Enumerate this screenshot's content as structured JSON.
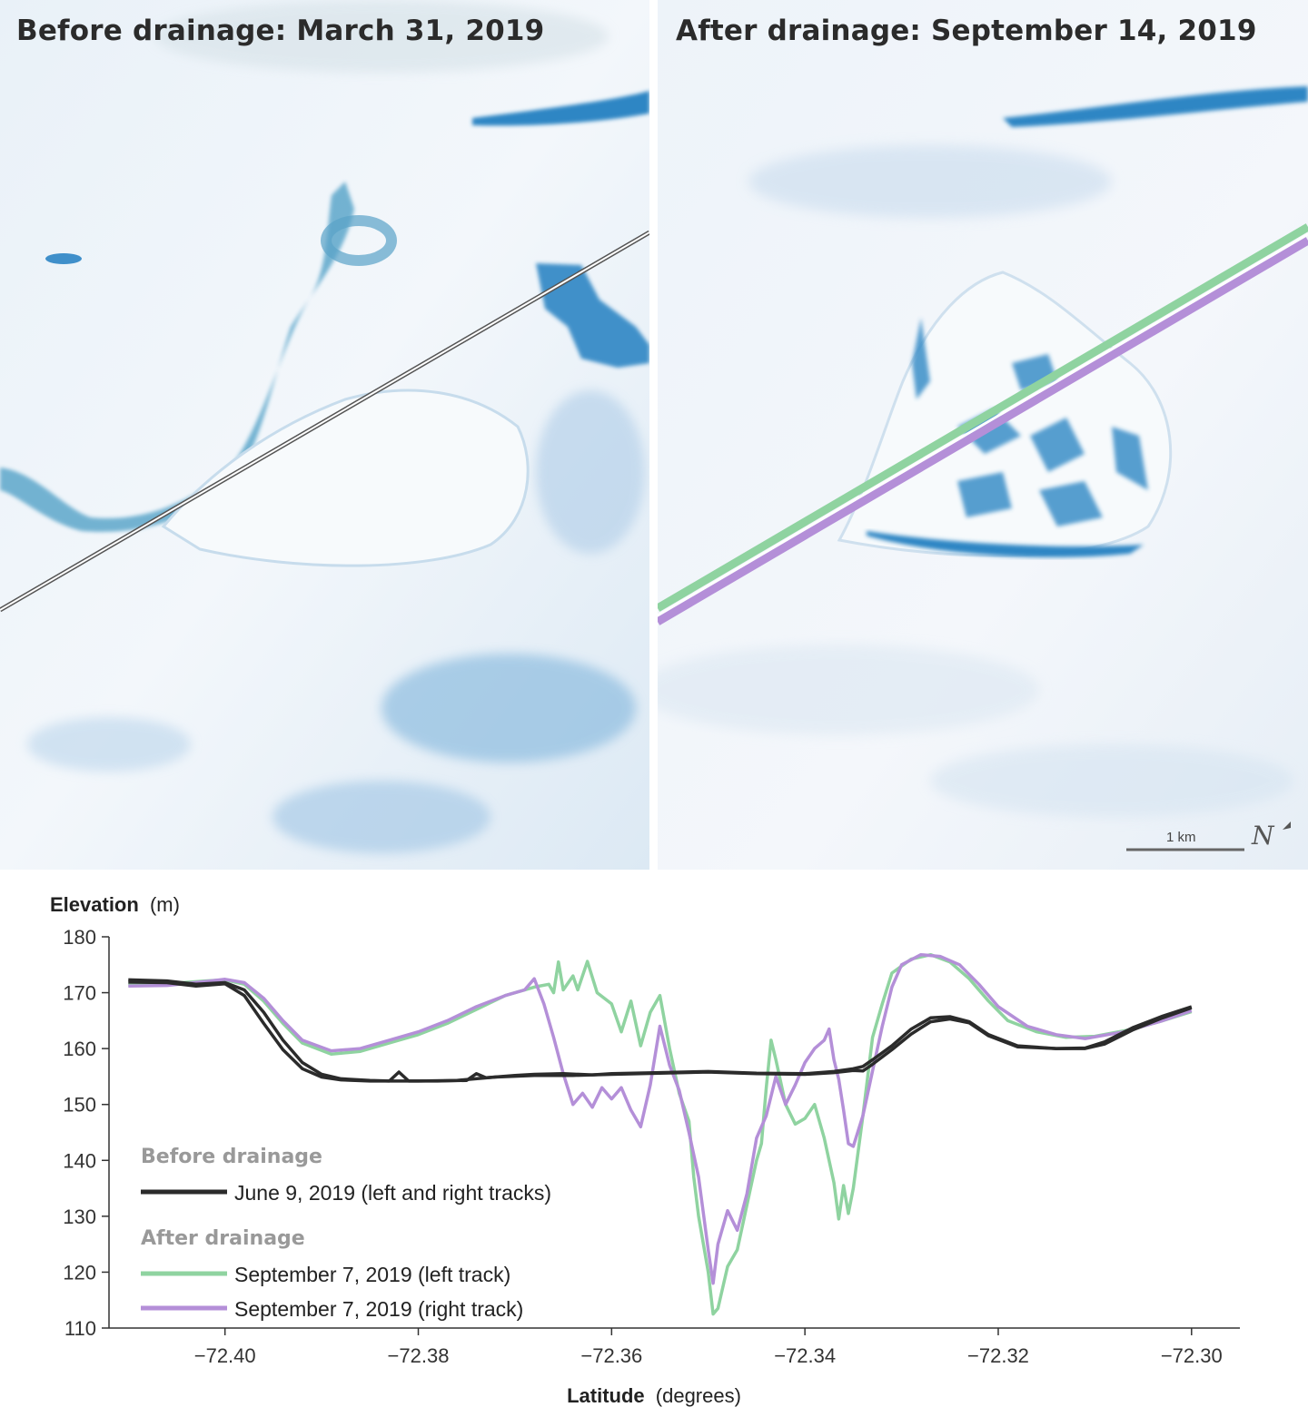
{
  "panels": {
    "left_title": "Before drainage: March 31, 2019",
    "right_title": "After drainage: September 14, 2019",
    "scale_label": "1 km",
    "north_symbol": "N"
  },
  "colors": {
    "before": "#2b2b2b",
    "after_left": "#8fd3a0",
    "after_right": "#b48fd8",
    "ice": "#eef4fa",
    "meltwater": "#2f86c4"
  },
  "chart_data": {
    "type": "line",
    "ylabel": "Elevation",
    "yunit": "(m)",
    "xlabel": "Latitude",
    "xunit": "(degrees)",
    "xlim": [
      -72.412,
      -72.295
    ],
    "ylim": [
      110,
      180
    ],
    "xticks": [
      "−72.40",
      "−72.38",
      "−72.36",
      "−72.34",
      "−72.32",
      "−72.30"
    ],
    "xtick_values": [
      -72.4,
      -72.38,
      -72.36,
      -72.34,
      -72.32,
      -72.3
    ],
    "yticks": [
      "180",
      "170",
      "160",
      "150",
      "140",
      "130",
      "120",
      "110"
    ],
    "ytick_values": [
      180,
      170,
      160,
      150,
      140,
      130,
      120,
      110
    ],
    "legend": {
      "before_heading": "Before drainage",
      "after_heading": "After drainage"
    },
    "series": [
      {
        "name": "June 9, 2019 (left and right tracks)",
        "group": "before",
        "color": "#2b2b2b",
        "points": [
          [
            -72.41,
            172.3
          ],
          [
            -72.406,
            172.1
          ],
          [
            -72.403,
            171.5
          ],
          [
            -72.4,
            171.8
          ],
          [
            -72.398,
            170.5
          ],
          [
            -72.396,
            166.5
          ],
          [
            -72.394,
            161.5
          ],
          [
            -72.392,
            157.5
          ],
          [
            -72.39,
            155.4
          ],
          [
            -72.388,
            154.6
          ],
          [
            -72.385,
            154.3
          ],
          [
            -72.383,
            154.2
          ],
          [
            -72.382,
            155.8
          ],
          [
            -72.381,
            154.2
          ],
          [
            -72.378,
            154.2
          ],
          [
            -72.375,
            154.3
          ],
          [
            -72.374,
            155.5
          ],
          [
            -72.373,
            154.8
          ],
          [
            -72.37,
            155.2
          ],
          [
            -72.368,
            155.4
          ],
          [
            -72.365,
            155.5
          ],
          [
            -72.362,
            155.3
          ],
          [
            -72.36,
            155.5
          ],
          [
            -72.355,
            155.7
          ],
          [
            -72.35,
            155.9
          ],
          [
            -72.345,
            155.6
          ],
          [
            -72.34,
            155.5
          ],
          [
            -72.337,
            155.9
          ],
          [
            -72.335,
            156.4
          ],
          [
            -72.334,
            156.8
          ],
          [
            -72.333,
            158.0
          ],
          [
            -72.331,
            160.5
          ],
          [
            -72.329,
            163.5
          ],
          [
            -72.327,
            165.5
          ],
          [
            -72.325,
            165.7
          ],
          [
            -72.323,
            164.8
          ],
          [
            -72.321,
            162.5
          ],
          [
            -72.318,
            160.5
          ],
          [
            -72.314,
            160.0
          ],
          [
            -72.311,
            160.1
          ],
          [
            -72.309,
            161.2
          ],
          [
            -72.306,
            163.8
          ],
          [
            -72.303,
            165.8
          ],
          [
            -72.3,
            167.5
          ]
        ],
        "points_b": [
          [
            -72.41,
            171.9
          ],
          [
            -72.406,
            171.8
          ],
          [
            -72.403,
            171.2
          ],
          [
            -72.4,
            171.6
          ],
          [
            -72.398,
            169.5
          ],
          [
            -72.396,
            164.5
          ],
          [
            -72.394,
            159.8
          ],
          [
            -72.392,
            156.4
          ],
          [
            -72.39,
            154.9
          ],
          [
            -72.388,
            154.4
          ],
          [
            -72.385,
            154.2
          ],
          [
            -72.38,
            154.2
          ],
          [
            -72.376,
            154.3
          ],
          [
            -72.372,
            154.9
          ],
          [
            -72.368,
            155.2
          ],
          [
            -72.364,
            155.2
          ],
          [
            -72.36,
            155.4
          ],
          [
            -72.355,
            155.6
          ],
          [
            -72.35,
            155.8
          ],
          [
            -72.345,
            155.5
          ],
          [
            -72.34,
            155.4
          ],
          [
            -72.337,
            155.7
          ],
          [
            -72.335,
            156.1
          ],
          [
            -72.334,
            156.0
          ],
          [
            -72.333,
            157.2
          ],
          [
            -72.331,
            159.8
          ],
          [
            -72.329,
            162.6
          ],
          [
            -72.327,
            164.8
          ],
          [
            -72.325,
            165.3
          ],
          [
            -72.323,
            164.6
          ],
          [
            -72.321,
            162.3
          ],
          [
            -72.318,
            160.3
          ],
          [
            -72.314,
            160.0
          ],
          [
            -72.311,
            160.0
          ],
          [
            -72.309,
            160.8
          ],
          [
            -72.306,
            163.4
          ],
          [
            -72.303,
            165.5
          ],
          [
            -72.3,
            167.3
          ]
        ]
      },
      {
        "name": "September 7, 2019 (left track)",
        "group": "after",
        "color": "#8fd3a0",
        "points": [
          [
            -72.41,
            171.4
          ],
          [
            -72.406,
            171.6
          ],
          [
            -72.402,
            172.1
          ],
          [
            -72.4,
            172.3
          ],
          [
            -72.398,
            171.5
          ],
          [
            -72.396,
            168.5
          ],
          [
            -72.394,
            164.5
          ],
          [
            -72.392,
            161.0
          ],
          [
            -72.389,
            159.0
          ],
          [
            -72.386,
            159.5
          ],
          [
            -72.383,
            161.0
          ],
          [
            -72.38,
            162.5
          ],
          [
            -72.377,
            164.5
          ],
          [
            -72.374,
            167.0
          ],
          [
            -72.371,
            169.5
          ],
          [
            -72.368,
            171.0
          ],
          [
            -72.3665,
            171.5
          ],
          [
            -72.366,
            170.0
          ],
          [
            -72.3655,
            175.5
          ],
          [
            -72.365,
            170.5
          ],
          [
            -72.364,
            173.0
          ],
          [
            -72.3635,
            170.5
          ],
          [
            -72.3625,
            175.6
          ],
          [
            -72.3615,
            170.0
          ],
          [
            -72.36,
            168.0
          ],
          [
            -72.359,
            163.0
          ],
          [
            -72.358,
            168.5
          ],
          [
            -72.357,
            160.5
          ],
          [
            -72.356,
            166.5
          ],
          [
            -72.355,
            169.5
          ],
          [
            -72.354,
            160.0
          ],
          [
            -72.353,
            152.0
          ],
          [
            -72.352,
            147.0
          ],
          [
            -72.3515,
            137.0
          ],
          [
            -72.351,
            130.0
          ],
          [
            -72.35,
            120.0
          ],
          [
            -72.3495,
            112.5
          ],
          [
            -72.349,
            113.5
          ],
          [
            -72.348,
            121.0
          ],
          [
            -72.347,
            124.0
          ],
          [
            -72.346,
            132.0
          ],
          [
            -72.345,
            140.0
          ],
          [
            -72.3445,
            143.0
          ],
          [
            -72.344,
            153.0
          ],
          [
            -72.3435,
            161.5
          ],
          [
            -72.343,
            158.0
          ],
          [
            -72.342,
            150.0
          ],
          [
            -72.341,
            146.5
          ],
          [
            -72.34,
            147.5
          ],
          [
            -72.339,
            150.0
          ],
          [
            -72.338,
            144.0
          ],
          [
            -72.337,
            136.0
          ],
          [
            -72.3365,
            129.5
          ],
          [
            -72.336,
            135.5
          ],
          [
            -72.3355,
            130.5
          ],
          [
            -72.335,
            135.0
          ],
          [
            -72.334,
            148.0
          ],
          [
            -72.333,
            162.0
          ],
          [
            -72.332,
            168.0
          ],
          [
            -72.331,
            173.5
          ],
          [
            -72.329,
            176.0
          ],
          [
            -72.327,
            176.8
          ],
          [
            -72.325,
            175.5
          ],
          [
            -72.323,
            172.5
          ],
          [
            -72.321,
            168.5
          ],
          [
            -72.319,
            165.0
          ],
          [
            -72.316,
            163.0
          ],
          [
            -72.313,
            162.0
          ],
          [
            -72.31,
            162.2
          ],
          [
            -72.306,
            163.5
          ],
          [
            -72.303,
            165.0
          ],
          [
            -72.3,
            166.6
          ]
        ]
      },
      {
        "name": "September 7, 2019 (right track)",
        "group": "after",
        "color": "#b48fd8",
        "points": [
          [
            -72.41,
            171.2
          ],
          [
            -72.406,
            171.3
          ],
          [
            -72.402,
            172.0
          ],
          [
            -72.4,
            172.4
          ],
          [
            -72.398,
            171.8
          ],
          [
            -72.396,
            169.0
          ],
          [
            -72.394,
            165.0
          ],
          [
            -72.392,
            161.5
          ],
          [
            -72.389,
            159.6
          ],
          [
            -72.386,
            160.0
          ],
          [
            -72.383,
            161.5
          ],
          [
            -72.38,
            163.0
          ],
          [
            -72.377,
            165.0
          ],
          [
            -72.374,
            167.5
          ],
          [
            -72.371,
            169.5
          ],
          [
            -72.369,
            170.5
          ],
          [
            -72.368,
            172.5
          ],
          [
            -72.367,
            168.0
          ],
          [
            -72.366,
            162.0
          ],
          [
            -72.365,
            155.5
          ],
          [
            -72.364,
            150.0
          ],
          [
            -72.363,
            152.0
          ],
          [
            -72.362,
            149.5
          ],
          [
            -72.361,
            153.0
          ],
          [
            -72.36,
            151.0
          ],
          [
            -72.359,
            153.0
          ],
          [
            -72.358,
            149.0
          ],
          [
            -72.357,
            146.0
          ],
          [
            -72.356,
            153.5
          ],
          [
            -72.355,
            164.0
          ],
          [
            -72.354,
            157.0
          ],
          [
            -72.353,
            152.5
          ],
          [
            -72.352,
            145.0
          ],
          [
            -72.351,
            137.0
          ],
          [
            -72.35,
            124.0
          ],
          [
            -72.3495,
            118.0
          ],
          [
            -72.349,
            125.0
          ],
          [
            -72.348,
            131.0
          ],
          [
            -72.347,
            127.5
          ],
          [
            -72.346,
            134.0
          ],
          [
            -72.345,
            144.0
          ],
          [
            -72.344,
            148.0
          ],
          [
            -72.343,
            155.0
          ],
          [
            -72.342,
            150.0
          ],
          [
            -72.341,
            153.5
          ],
          [
            -72.34,
            157.5
          ],
          [
            -72.339,
            160.0
          ],
          [
            -72.338,
            161.5
          ],
          [
            -72.3375,
            163.5
          ],
          [
            -72.337,
            158.0
          ],
          [
            -72.3365,
            154.5
          ],
          [
            -72.336,
            149.0
          ],
          [
            -72.3355,
            143.0
          ],
          [
            -72.335,
            142.5
          ],
          [
            -72.334,
            148.0
          ],
          [
            -72.333,
            156.0
          ],
          [
            -72.332,
            164.0
          ],
          [
            -72.331,
            171.0
          ],
          [
            -72.33,
            175.0
          ],
          [
            -72.328,
            176.8
          ],
          [
            -72.326,
            176.5
          ],
          [
            -72.324,
            175.0
          ],
          [
            -72.322,
            171.5
          ],
          [
            -72.32,
            167.5
          ],
          [
            -72.317,
            164.0
          ],
          [
            -72.314,
            162.5
          ],
          [
            -72.311,
            161.8
          ],
          [
            -72.307,
            163.0
          ],
          [
            -72.303,
            165.0
          ],
          [
            -72.3,
            166.8
          ]
        ]
      }
    ]
  }
}
